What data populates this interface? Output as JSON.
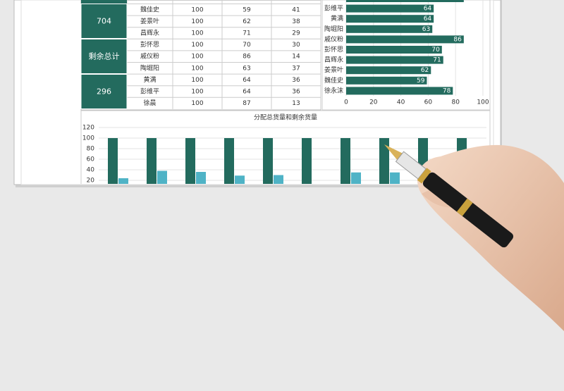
{
  "table": {
    "side": [
      "704",
      "剩余总计",
      "296"
    ],
    "rows": [
      [
        "魏佳史",
        100,
        59,
        41
      ],
      [
        "姜景叶",
        100,
        62,
        38
      ],
      [
        "昌辉永",
        100,
        71,
        29
      ],
      [
        "彭怀思",
        100,
        70,
        30
      ],
      [
        "戚仪粉",
        100,
        86,
        14
      ],
      [
        "陶堀阳",
        100,
        63,
        37
      ],
      [
        "黄满",
        100,
        64,
        36
      ],
      [
        "彭维平",
        100,
        64,
        36
      ],
      [
        "徐晨",
        100,
        87,
        13
      ]
    ]
  },
  "chart_data": [
    {
      "type": "barh",
      "color": "#236b5e",
      "categories": [
        null,
        "彭维平",
        "黄满",
        "陶堀阳",
        "戚仪粉",
        "彭怀思",
        "昌辉永",
        "姜景叶",
        "魏佳史",
        "徐永沫"
      ],
      "values": [
        86,
        64,
        64,
        63,
        86,
        70,
        71,
        62,
        59,
        78
      ],
      "xlim": [
        0,
        100
      ],
      "xticks": [
        0,
        20,
        40,
        60,
        80,
        100
      ],
      "grid": true
    },
    {
      "type": "bar",
      "title": "分配总货量和剩余货量",
      "categories": [
        null,
        null,
        null,
        null,
        null,
        null,
        null,
        null,
        null,
        null
      ],
      "series": [
        {
          "color": "#236b5e",
          "values": [
            100,
            100,
            100,
            100,
            100,
            100,
            100,
            100,
            100,
            100
          ]
        },
        {
          "color": "#4fb3c6",
          "values": [
            24,
            38,
            36,
            29,
            30,
            12,
            35,
            35,
            null,
            null
          ]
        }
      ],
      "ylim": [
        0,
        120
      ],
      "yticks": [
        0,
        20,
        40,
        60,
        80,
        100,
        120
      ],
      "grid": true
    }
  ]
}
